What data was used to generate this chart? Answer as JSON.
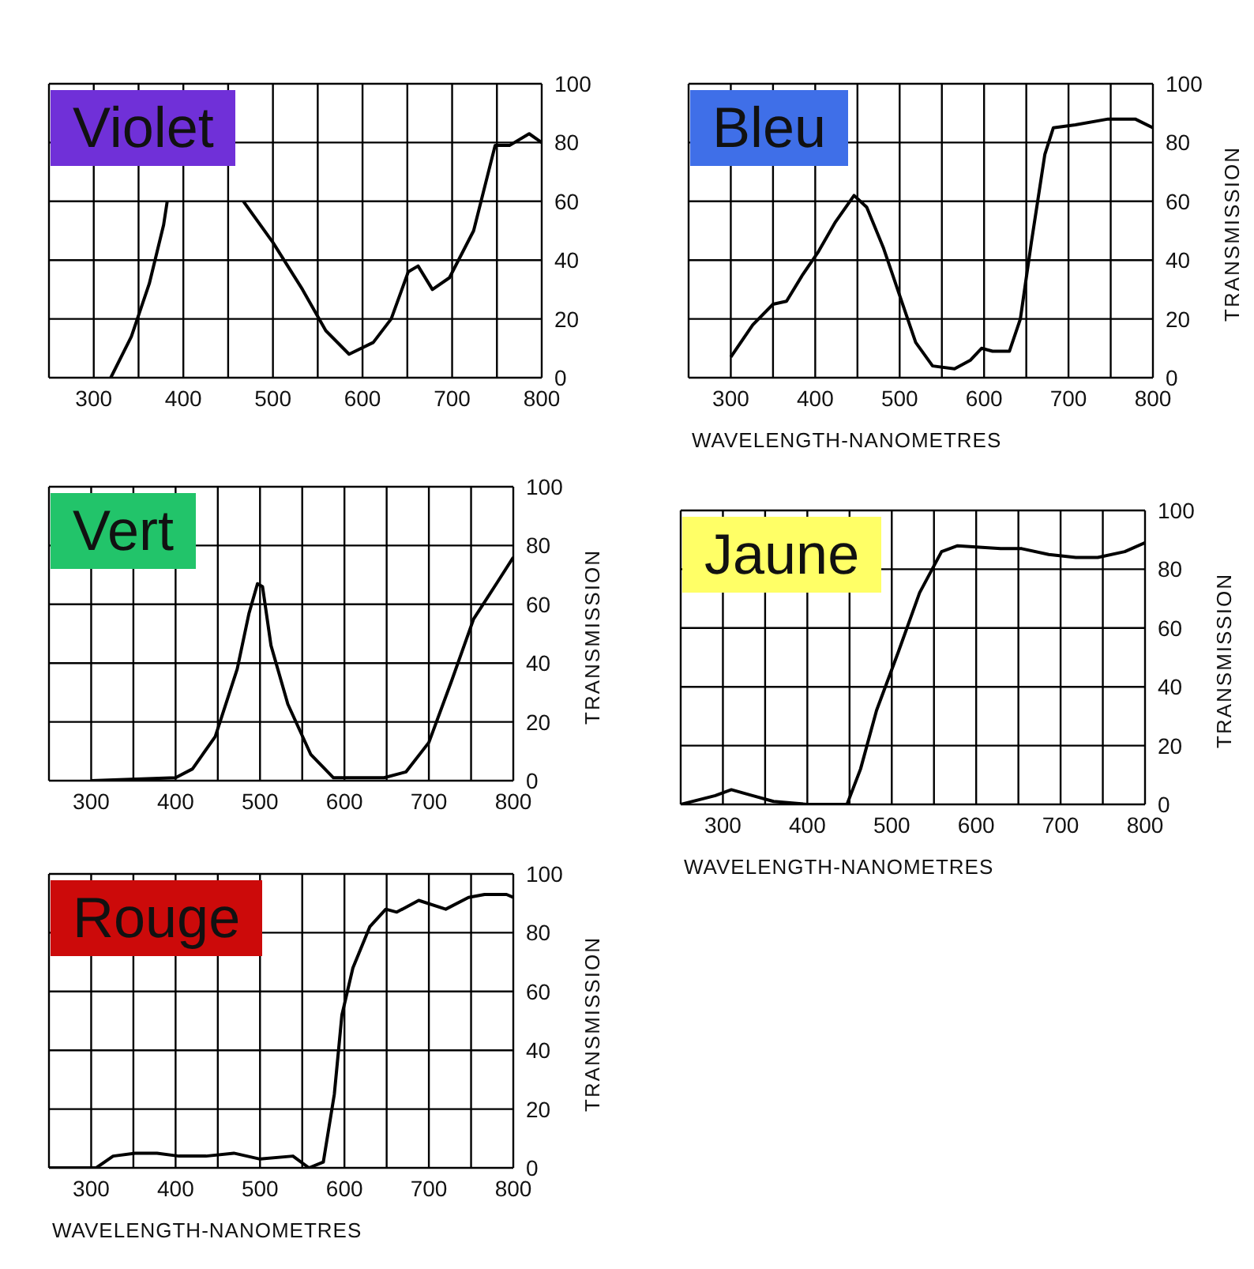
{
  "chart_data": [
    {
      "type": "line",
      "title": "Violet",
      "xlim": [
        250,
        800
      ],
      "xticks": [
        {
          "value": 250,
          "label": null
        },
        300,
        {
          "value": 350,
          "label": null
        },
        400,
        {
          "value": 450,
          "label": null
        },
        500,
        {
          "value": 550,
          "label": null
        },
        600,
        {
          "value": 650,
          "label": null
        },
        700,
        {
          "value": 750,
          "label": null
        },
        800
      ],
      "ylim": [
        0,
        100
      ],
      "yticks": [
        0,
        20,
        40,
        60,
        80,
        100
      ],
      "grid": true,
      "series": [
        {
          "color": "#000000",
          "x": [
            319,
            342,
            362,
            378,
            382,
            390,
            455,
            467,
            500,
            533,
            559,
            585,
            612,
            632,
            651,
            662,
            678,
            697,
            724,
            748,
            764,
            786,
            800
          ],
          "values": [
            0,
            14,
            32,
            52,
            60,
            null,
            null,
            60,
            46,
            30,
            16,
            8,
            12,
            20,
            36,
            38,
            30,
            34,
            50,
            79,
            79,
            83,
            80
          ]
        }
      ]
    },
    {
      "type": "line",
      "title": "Bleu",
      "xlabel": "WAVELENGTH-NANOMETRES",
      "ylabel": "TRANSMISSION",
      "xlim": [
        250,
        800
      ],
      "xticks": [
        {
          "value": 250,
          "label": null
        },
        300,
        {
          "value": 350,
          "label": null
        },
        400,
        {
          "value": 450,
          "label": null
        },
        500,
        {
          "value": 550,
          "label": null
        },
        600,
        {
          "value": 650,
          "label": null
        },
        700,
        {
          "value": 750,
          "label": null
        },
        800
      ],
      "ylim": [
        0,
        100
      ],
      "yticks": [
        0,
        20,
        40,
        60,
        80,
        100
      ],
      "grid": true,
      "series": [
        {
          "color": "#000000",
          "x": [
            300,
            326,
            350,
            366,
            385,
            404,
            424,
            446,
            461,
            481,
            500,
            519,
            539,
            565,
            584,
            597,
            610,
            630,
            643,
            656,
            672,
            682,
            708,
            747,
            779,
            800
          ],
          "values": [
            7,
            18,
            25,
            26,
            35,
            43,
            53,
            62,
            58,
            44,
            28,
            12,
            4,
            3,
            6,
            10,
            9,
            9,
            20,
            46,
            76,
            85,
            86,
            88,
            88,
            85
          ]
        }
      ]
    },
    {
      "type": "line",
      "title": "Vert",
      "ylabel": "TRANSMISSION",
      "xlim": [
        250,
        800
      ],
      "xticks": [
        {
          "value": 250,
          "label": null
        },
        300,
        {
          "value": 350,
          "label": null
        },
        400,
        {
          "value": 450,
          "label": null
        },
        500,
        {
          "value": 550,
          "label": null
        },
        600,
        {
          "value": 650,
          "label": null
        },
        700,
        {
          "value": 750,
          "label": null
        },
        800
      ],
      "ylim": [
        0,
        100
      ],
      "yticks": [
        0,
        20,
        40,
        60,
        80,
        100
      ],
      "grid": true,
      "series": [
        {
          "color": "#000000",
          "x": [
            300,
            400,
            420,
            447,
            473,
            487,
            497,
            503,
            513,
            533,
            560,
            587,
            647,
            673,
            700,
            727,
            753,
            780,
            800
          ],
          "values": [
            0,
            1,
            4,
            15,
            38,
            57,
            67,
            66,
            46,
            26,
            9,
            1,
            1,
            3,
            13,
            34,
            55,
            67,
            76
          ]
        }
      ]
    },
    {
      "type": "line",
      "title": "Jaune",
      "xlabel": "WAVELENGTH-NANOMETRES",
      "ylabel": "TRANSMISSION",
      "xlim": [
        250,
        800
      ],
      "xticks": [
        {
          "value": 250,
          "label": null
        },
        300,
        {
          "value": 350,
          "label": null
        },
        400,
        {
          "value": 450,
          "label": null
        },
        500,
        {
          "value": 550,
          "label": null
        },
        600,
        {
          "value": 650,
          "label": null
        },
        700,
        {
          "value": 750,
          "label": null
        },
        800
      ],
      "ylim": [
        0,
        100
      ],
      "yticks": [
        0,
        20,
        40,
        60,
        80,
        100
      ],
      "grid": true,
      "series": [
        {
          "color": "#000000",
          "x": [
            250,
            291,
            310,
            335,
            360,
            400,
            447,
            463,
            482,
            508,
            533,
            559,
            578,
            629,
            654,
            686,
            718,
            744,
            776,
            800
          ],
          "values": [
            0,
            3,
            5,
            3,
            1,
            0,
            0,
            12,
            32,
            52,
            72,
            86,
            88,
            87,
            87,
            85,
            84,
            84,
            86,
            89
          ]
        }
      ]
    },
    {
      "type": "line",
      "title": "Rouge",
      "xlabel": "WAVELENGTH-NANOMETRES",
      "ylabel": "TRANSMISSION",
      "xlim": [
        250,
        800
      ],
      "xticks": [
        {
          "value": 250,
          "label": null
        },
        300,
        {
          "value": 350,
          "label": null
        },
        400,
        {
          "value": 450,
          "label": null
        },
        500,
        {
          "value": 550,
          "label": null
        },
        600,
        {
          "value": 650,
          "label": null
        },
        700,
        {
          "value": 750,
          "label": null
        },
        800
      ],
      "ylim": [
        0,
        100
      ],
      "yticks": [
        0,
        20,
        40,
        60,
        80,
        100
      ],
      "grid": true,
      "series": [
        {
          "color": "#000000",
          "x": [
            250,
            306,
            326,
            352,
            378,
            404,
            436,
            469,
            500,
            539,
            558,
            575,
            588,
            597,
            610,
            630,
            649,
            662,
            688,
            720,
            747,
            766,
            792,
            800
          ],
          "values": [
            0,
            0,
            4,
            5,
            5,
            4,
            4,
            5,
            3,
            4,
            0,
            2,
            25,
            52,
            68,
            82,
            88,
            87,
            91,
            88,
            92,
            93,
            93,
            92
          ]
        }
      ]
    }
  ]
}
